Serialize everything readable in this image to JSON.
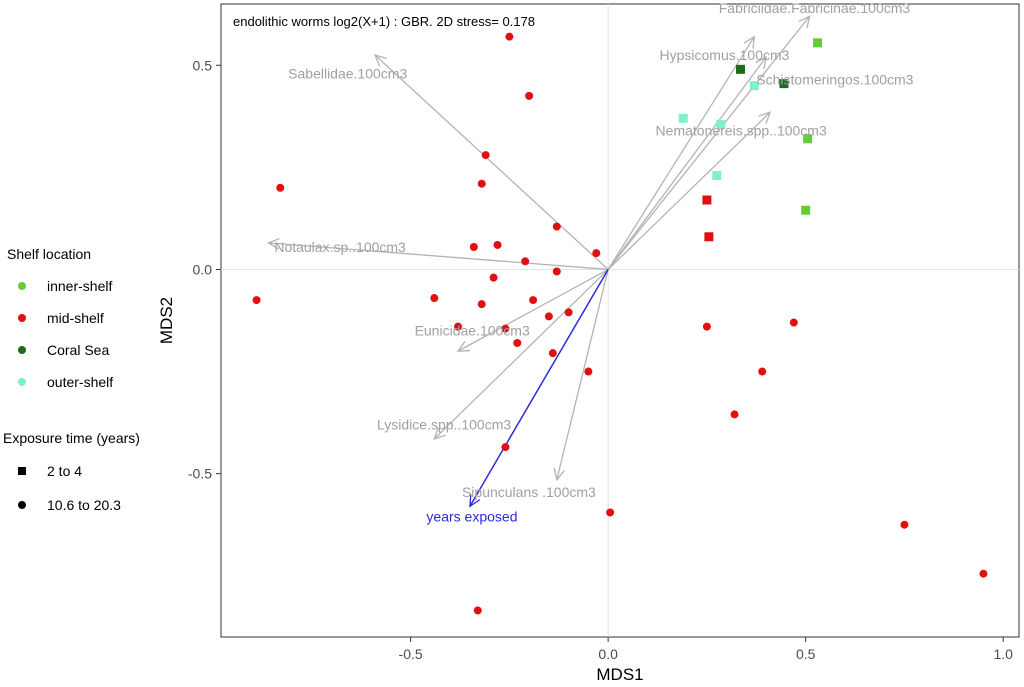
{
  "chart_data": {
    "type": "scatter",
    "title": "endolithic worms log2(X+1) : GBR. 2D stress= 0.178",
    "xlabel": "MDS1",
    "ylabel": "MDS2",
    "xlim": [
      -0.98,
      1.04
    ],
    "ylim": [
      -0.9,
      0.65
    ],
    "x_ticks": [
      -0.5,
      0.0,
      0.5,
      1.0
    ],
    "x_tick_labels": [
      "-0.5",
      "0.0",
      "0.5",
      "1.0"
    ],
    "y_ticks": [
      -0.5,
      0.0,
      0.5
    ],
    "y_tick_labels": [
      "-0.5",
      "0.0",
      "0.5"
    ],
    "grid": "zero-lines only",
    "legend_placement": "left",
    "colors": {
      "inner-shelf": "#66cc33",
      "mid-shelf": "#e01010",
      "Coral Sea": "#1e6b1e",
      "outer-shelf": "#7ff0c8",
      "vectors": "#b3b3b3",
      "years_vector": "#2b2bd9"
    },
    "legend": {
      "color_title": "Shelf location",
      "color_items": [
        "inner-shelf",
        "mid-shelf",
        "Coral Sea",
        "outer-shelf"
      ],
      "shape_title": "Exposure time (years)",
      "shape_items": [
        {
          "label": "2 to 4",
          "shape": "square"
        },
        {
          "label": "10.6 to 20.3",
          "shape": "circle"
        }
      ]
    },
    "points": [
      {
        "x": -0.25,
        "y": 0.57,
        "group": "mid-shelf",
        "shape": "circle"
      },
      {
        "x": -0.2,
        "y": 0.425,
        "group": "mid-shelf",
        "shape": "circle"
      },
      {
        "x": -0.31,
        "y": 0.28,
        "group": "mid-shelf",
        "shape": "circle"
      },
      {
        "x": -0.32,
        "y": 0.21,
        "group": "mid-shelf",
        "shape": "circle"
      },
      {
        "x": -0.83,
        "y": 0.2,
        "group": "mid-shelf",
        "shape": "circle"
      },
      {
        "x": -0.13,
        "y": 0.105,
        "group": "mid-shelf",
        "shape": "circle"
      },
      {
        "x": -0.34,
        "y": 0.055,
        "group": "mid-shelf",
        "shape": "circle"
      },
      {
        "x": -0.28,
        "y": 0.06,
        "group": "mid-shelf",
        "shape": "circle"
      },
      {
        "x": -0.03,
        "y": 0.04,
        "group": "mid-shelf",
        "shape": "circle"
      },
      {
        "x": -0.21,
        "y": 0.02,
        "group": "mid-shelf",
        "shape": "circle"
      },
      {
        "x": -0.13,
        "y": -0.005,
        "group": "mid-shelf",
        "shape": "circle"
      },
      {
        "x": -0.29,
        "y": -0.02,
        "group": "mid-shelf",
        "shape": "circle"
      },
      {
        "x": -0.89,
        "y": -0.075,
        "group": "mid-shelf",
        "shape": "circle"
      },
      {
        "x": -0.44,
        "y": -0.07,
        "group": "mid-shelf",
        "shape": "circle"
      },
      {
        "x": -0.32,
        "y": -0.085,
        "group": "mid-shelf",
        "shape": "circle"
      },
      {
        "x": -0.19,
        "y": -0.075,
        "group": "mid-shelf",
        "shape": "circle"
      },
      {
        "x": -0.1,
        "y": -0.105,
        "group": "mid-shelf",
        "shape": "circle"
      },
      {
        "x": -0.15,
        "y": -0.115,
        "group": "mid-shelf",
        "shape": "circle"
      },
      {
        "x": -0.38,
        "y": -0.14,
        "group": "mid-shelf",
        "shape": "circle"
      },
      {
        "x": -0.26,
        "y": -0.145,
        "group": "mid-shelf",
        "shape": "circle"
      },
      {
        "x": -0.23,
        "y": -0.18,
        "group": "mid-shelf",
        "shape": "circle"
      },
      {
        "x": -0.14,
        "y": -0.205,
        "group": "mid-shelf",
        "shape": "circle"
      },
      {
        "x": -0.05,
        "y": -0.25,
        "group": "mid-shelf",
        "shape": "circle"
      },
      {
        "x": -0.26,
        "y": -0.435,
        "group": "mid-shelf",
        "shape": "circle"
      },
      {
        "x": 0.005,
        "y": -0.595,
        "group": "mid-shelf",
        "shape": "circle"
      },
      {
        "x": -0.33,
        "y": -0.835,
        "group": "mid-shelf",
        "shape": "circle"
      },
      {
        "x": 0.25,
        "y": -0.14,
        "group": "mid-shelf",
        "shape": "circle"
      },
      {
        "x": 0.47,
        "y": -0.13,
        "group": "mid-shelf",
        "shape": "circle"
      },
      {
        "x": 0.39,
        "y": -0.25,
        "group": "mid-shelf",
        "shape": "circle"
      },
      {
        "x": 0.32,
        "y": -0.355,
        "group": "mid-shelf",
        "shape": "circle"
      },
      {
        "x": 0.75,
        "y": -0.625,
        "group": "mid-shelf",
        "shape": "circle"
      },
      {
        "x": 0.95,
        "y": -0.745,
        "group": "mid-shelf",
        "shape": "circle"
      },
      {
        "x": 0.53,
        "y": 0.555,
        "group": "inner-shelf",
        "shape": "square"
      },
      {
        "x": 0.505,
        "y": 0.32,
        "group": "inner-shelf",
        "shape": "square"
      },
      {
        "x": 0.5,
        "y": 0.145,
        "group": "inner-shelf",
        "shape": "square"
      },
      {
        "x": 0.335,
        "y": 0.49,
        "group": "Coral Sea",
        "shape": "square"
      },
      {
        "x": 0.445,
        "y": 0.455,
        "group": "Coral Sea",
        "shape": "square"
      },
      {
        "x": 0.37,
        "y": 0.45,
        "group": "outer-shelf",
        "shape": "square"
      },
      {
        "x": 0.19,
        "y": 0.37,
        "group": "outer-shelf",
        "shape": "square"
      },
      {
        "x": 0.285,
        "y": 0.355,
        "group": "outer-shelf",
        "shape": "square"
      },
      {
        "x": 0.275,
        "y": 0.23,
        "group": "outer-shelf",
        "shape": "square"
      },
      {
        "x": 0.25,
        "y": 0.17,
        "group": "mid-shelf",
        "shape": "square"
      },
      {
        "x": 0.255,
        "y": 0.08,
        "group": "mid-shelf",
        "shape": "square"
      }
    ],
    "vectors": [
      {
        "label": "Fabriciidae.Fabricinae.100cm3",
        "x": 0.51,
        "y": 0.62,
        "label_x": 0.28,
        "label_y": 0.64
      },
      {
        "label": "Hypsicomus.100cm3",
        "x": 0.37,
        "y": 0.57,
        "label_x": 0.13,
        "label_y": 0.525
      },
      {
        "label": "Schistomeringos.100cm3",
        "x": 0.4,
        "y": 0.52,
        "label_x": 0.375,
        "label_y": 0.465
      },
      {
        "label": "Nematonereis.spp..100cm3",
        "x": 0.41,
        "y": 0.385,
        "label_x": 0.12,
        "label_y": 0.34
      },
      {
        "label": "Sabellidae.100cm3",
        "x": -0.59,
        "y": 0.525,
        "label_x": -0.81,
        "label_y": 0.48
      },
      {
        "label": "Notaulax.sp..100cm3",
        "x": -0.86,
        "y": 0.065,
        "label_x": -0.845,
        "label_y": 0.055
      },
      {
        "label": "Eunicidae.100cm3",
        "x": -0.38,
        "y": -0.2,
        "label_x": -0.49,
        "label_y": -0.15
      },
      {
        "label": "Lysidice.spp..100cm3",
        "x": -0.44,
        "y": -0.415,
        "label_x": -0.585,
        "label_y": -0.38
      },
      {
        "label": "Sipunculans .100cm3",
        "x": -0.13,
        "y": -0.515,
        "label_x": -0.37,
        "label_y": -0.545
      }
    ],
    "years_vector": {
      "label": "years exposed",
      "x": -0.35,
      "y": -0.58,
      "label_x": -0.46,
      "label_y": -0.605
    }
  }
}
